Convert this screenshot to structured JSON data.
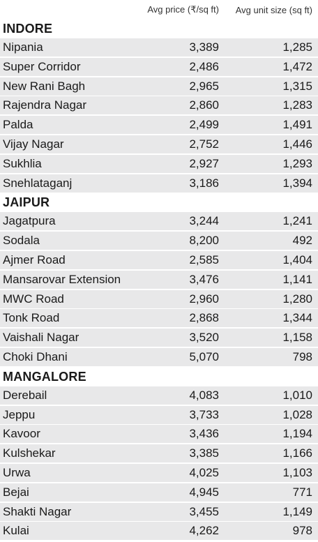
{
  "chart_data": {
    "type": "table",
    "columns": [
      "",
      "Avg price (₹/sq ft)",
      "Avg unit size (sq ft)"
    ],
    "sections": [
      {
        "name": "INDORE",
        "rows": [
          {
            "locality": "Nipania",
            "price": "3,389",
            "size": "1,285"
          },
          {
            "locality": "Super Corridor",
            "price": "2,486",
            "size": "1,472"
          },
          {
            "locality": "New Rani Bagh",
            "price": "2,965",
            "size": "1,315"
          },
          {
            "locality": "Rajendra Nagar",
            "price": "2,860",
            "size": "1,283"
          },
          {
            "locality": "Palda",
            "price": "2,499",
            "size": "1,491"
          },
          {
            "locality": "Vijay Nagar",
            "price": "2,752",
            "size": "1,446"
          },
          {
            "locality": "Sukhlia",
            "price": "2,927",
            "size": "1,293"
          },
          {
            "locality": "Snehlataganj",
            "price": "3,186",
            "size": "1,394"
          }
        ]
      },
      {
        "name": "JAIPUR",
        "rows": [
          {
            "locality": "Jagatpura",
            "price": "3,244",
            "size": "1,241"
          },
          {
            "locality": "Sodala",
            "price": "8,200",
            "size": "492"
          },
          {
            "locality": "Ajmer Road",
            "price": "2,585",
            "size": "1,404"
          },
          {
            "locality": "Mansarovar Extension",
            "price": "3,476",
            "size": "1,141"
          },
          {
            "locality": "MWC Road",
            "price": "2,960",
            "size": "1,280"
          },
          {
            "locality": "Tonk Road",
            "price": "2,868",
            "size": "1,344"
          },
          {
            "locality": "Vaishali Nagar",
            "price": "3,520",
            "size": "1,158"
          },
          {
            "locality": "Choki Dhani",
            "price": "5,070",
            "size": "798"
          }
        ]
      },
      {
        "name": "MANGALORE",
        "rows": [
          {
            "locality": "Derebail",
            "price": "4,083",
            "size": "1,010"
          },
          {
            "locality": "Jeppu",
            "price": "3,733",
            "size": "1,028"
          },
          {
            "locality": "Kavoor",
            "price": "3,436",
            "size": "1,194"
          },
          {
            "locality": "Kulshekar",
            "price": "3,385",
            "size": "1,166"
          },
          {
            "locality": "Urwa",
            "price": "4,025",
            "size": "1,103"
          },
          {
            "locality": "Bejai",
            "price": "4,945",
            "size": "771"
          },
          {
            "locality": "Shakti Nagar",
            "price": "3,455",
            "size": "1,149"
          },
          {
            "locality": "Kulai",
            "price": "4,262",
            "size": "978"
          }
        ]
      }
    ]
  }
}
